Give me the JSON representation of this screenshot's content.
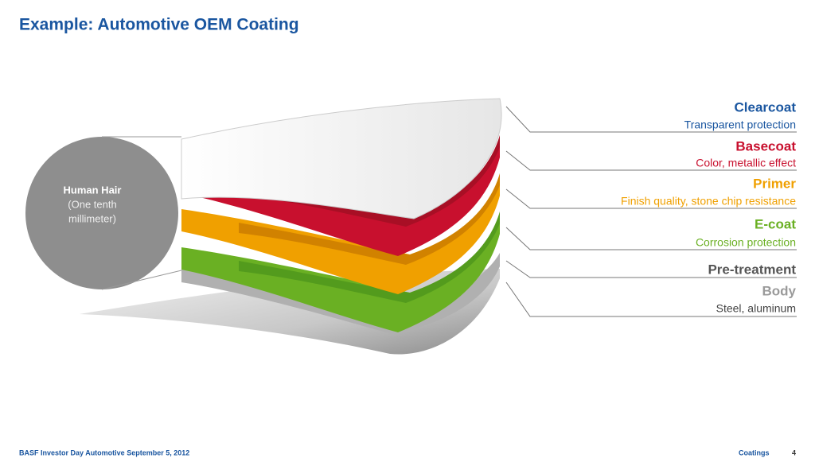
{
  "header": {
    "title": "Example: Automotive OEM Coating"
  },
  "hair": {
    "lines": [
      "Human Hair",
      "(One tenth",
      "millimeter)"
    ]
  },
  "layers": [
    {
      "name": "Clearcoat",
      "description": "Transparent protection",
      "color": "#1a56a0",
      "desc_color": "#1a56a0"
    },
    {
      "name": "Basecoat",
      "description": "Color, metallic effect",
      "color": "#c8102e",
      "desc_color": "#c8102e"
    },
    {
      "name": "Primer",
      "description": "Finish quality, stone chip resistance",
      "color": "#f0a000",
      "desc_color": "#f0a000"
    },
    {
      "name": "E-coat",
      "description": "Corrosion protection",
      "color": "#6ab023",
      "desc_color": "#6ab023"
    },
    {
      "name": "Pre-treatment",
      "color": "#555555"
    },
    {
      "name": "Body",
      "description": "Steel, aluminum",
      "color": "#9a9a9a",
      "desc_color": "#444444"
    }
  ],
  "footer": {
    "left": "BASF Investor Day Automotive September 5, 2012",
    "section": "Coatings",
    "page": "4"
  }
}
